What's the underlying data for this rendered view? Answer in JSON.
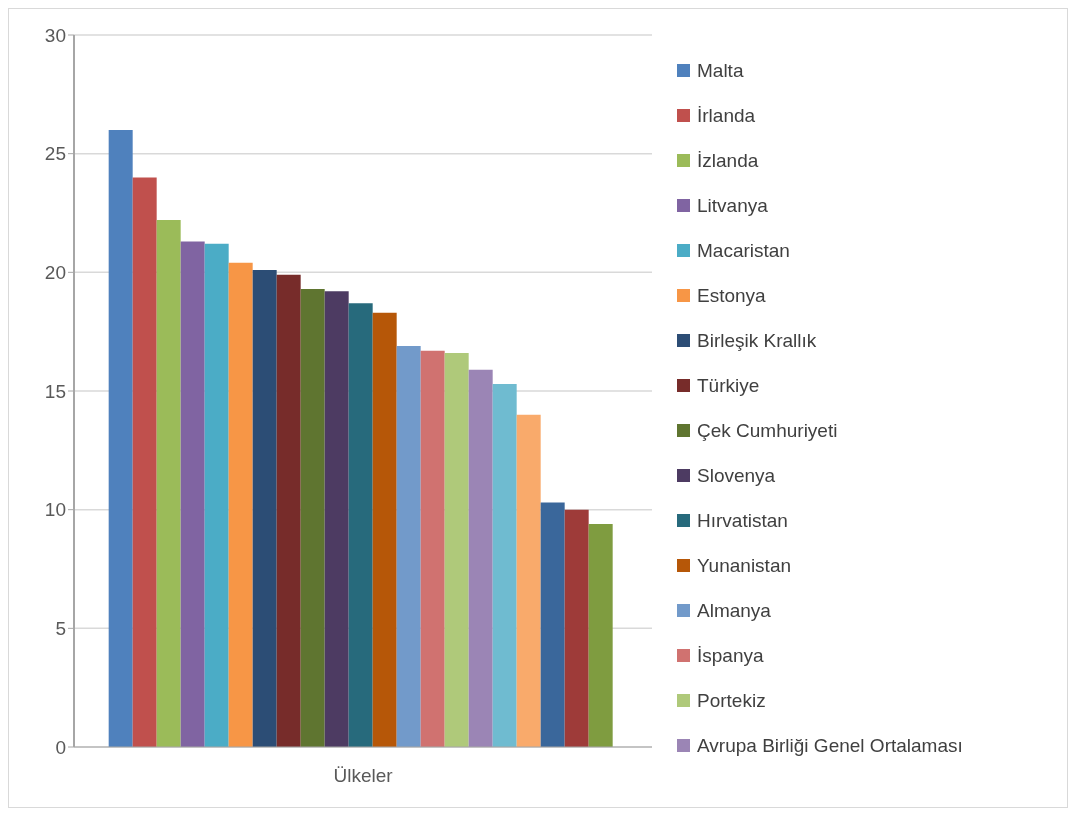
{
  "chart_data": {
    "type": "bar",
    "categories": [
      "Ülkeler"
    ],
    "series": [
      {
        "name": "Malta",
        "color": "#4f81bd",
        "values": [
          26.0
        ]
      },
      {
        "name": "İrlanda",
        "color": "#c0504d",
        "values": [
          24.0
        ]
      },
      {
        "name": "İzlanda",
        "color": "#9bbb59",
        "values": [
          22.2
        ]
      },
      {
        "name": "Litvanya",
        "color": "#8064a2",
        "values": [
          21.3
        ]
      },
      {
        "name": "Macaristan",
        "color": "#4bacc6",
        "values": [
          21.2
        ]
      },
      {
        "name": "Estonya",
        "color": "#f79646",
        "values": [
          20.4
        ]
      },
      {
        "name": "Birleşik Krallık",
        "color": "#2c4d75",
        "values": [
          20.1
        ]
      },
      {
        "name": "Türkiye",
        "color": "#772c2a",
        "values": [
          19.9
        ]
      },
      {
        "name": "Çek Cumhuriyeti",
        "color": "#5f7530",
        "values": [
          19.3
        ]
      },
      {
        "name": "Slovenya",
        "color": "#4d3b62",
        "values": [
          19.2
        ]
      },
      {
        "name": "Hırvatistan",
        "color": "#276a7c",
        "values": [
          18.7
        ]
      },
      {
        "name": "Yunanistan",
        "color": "#b65708",
        "values": [
          18.3
        ]
      },
      {
        "name": "Almanya",
        "color": "#729aca",
        "values": [
          16.9
        ]
      },
      {
        "name": "İspanya",
        "color": "#d07270",
        "values": [
          16.7
        ]
      },
      {
        "name": "Portekiz",
        "color": "#afc97a",
        "values": [
          16.6
        ]
      },
      {
        "name": "Avrupa Birliği Genel Ortalaması",
        "color": "#9b85b5",
        "values": [
          15.9
        ]
      },
      {
        "color": "#6fbbd0",
        "values": [
          15.3
        ]
      },
      {
        "color": "#f9aa6b",
        "values": [
          14.0
        ]
      },
      {
        "color": "#3a679b",
        "values": [
          10.3
        ]
      },
      {
        "color": "#9e3b39",
        "values": [
          10.0
        ]
      },
      {
        "color": "#7f9c40",
        "values": [
          9.4
        ]
      }
    ],
    "ylim": [
      0,
      30
    ],
    "yticks": [
      0,
      5,
      10,
      15,
      20,
      25,
      30
    ],
    "grid": "y",
    "legend": "right"
  }
}
